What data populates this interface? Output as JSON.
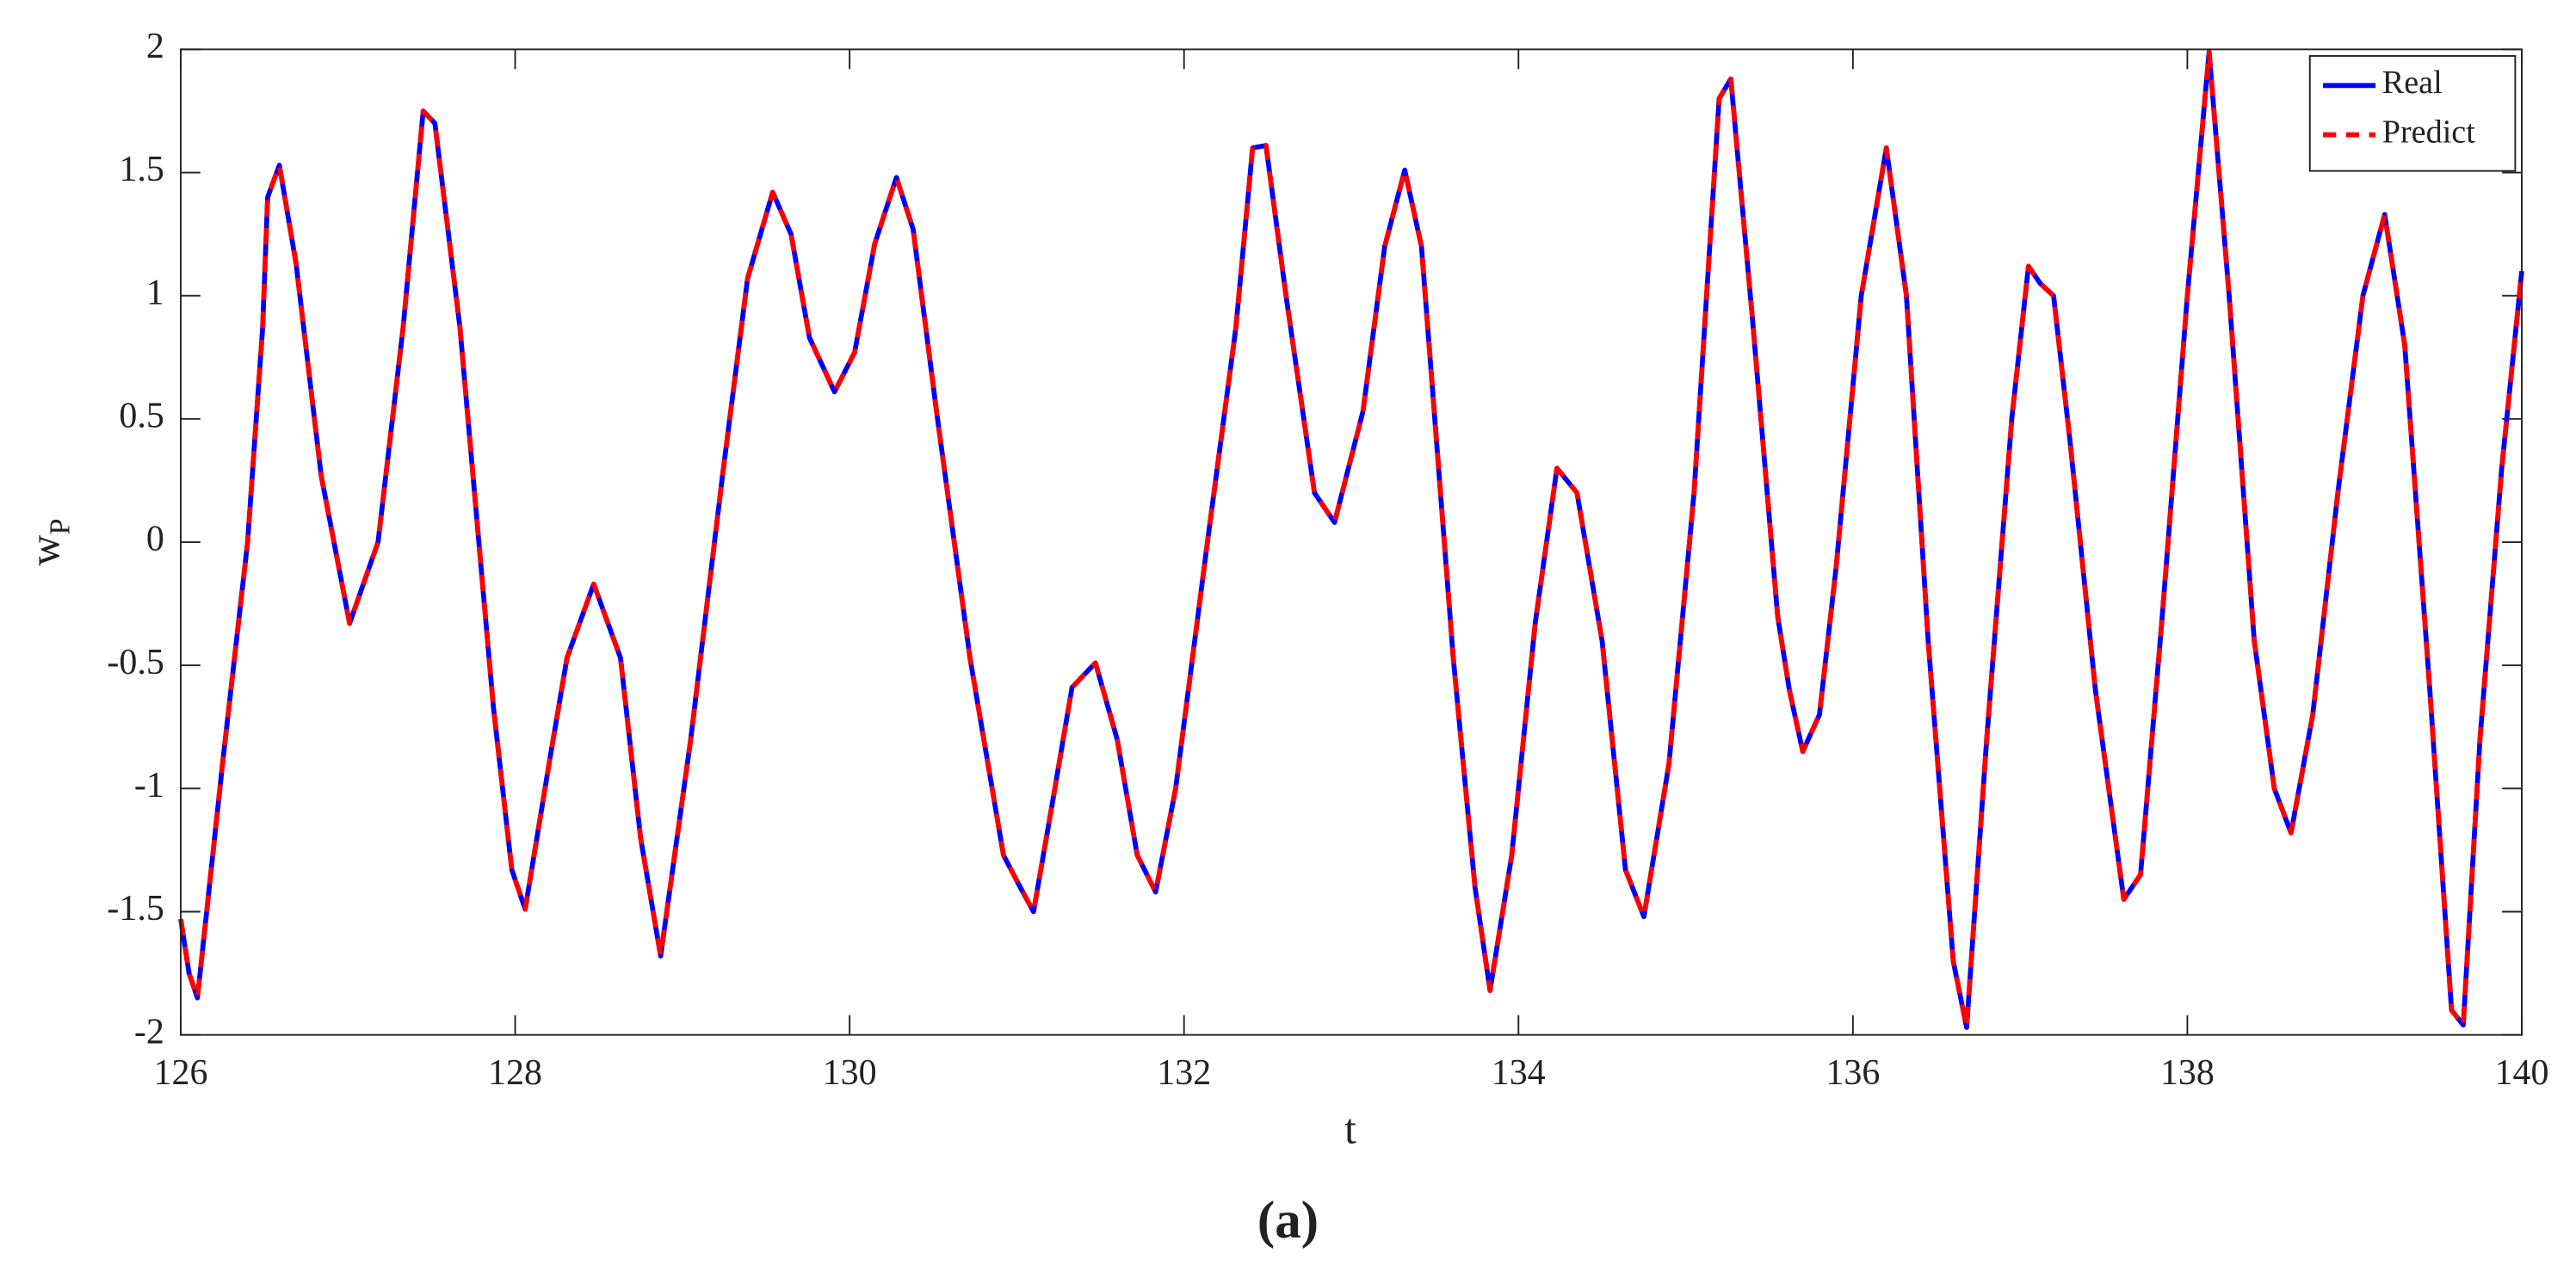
{
  "chart_data": {
    "type": "line",
    "xlabel": "t",
    "ylabel": {
      "main": "w",
      "sub": "P"
    },
    "caption": "(a)",
    "x": [
      126,
      126.05,
      126.1,
      126.25,
      126.4,
      126.49,
      126.52,
      126.59,
      126.69,
      126.84,
      127.01,
      127.18,
      127.33,
      127.45,
      127.52,
      127.67,
      127.87,
      127.98,
      128.06,
      128.21,
      128.31,
      128.47,
      128.63,
      128.75,
      128.87,
      129.05,
      129.24,
      129.39,
      129.54,
      129.65,
      129.76,
      129.91,
      130.03,
      130.15,
      130.28,
      130.38,
      130.52,
      130.72,
      130.92,
      131.02,
      131.1,
      131.21,
      131.33,
      131.47,
      131.6,
      131.72,
      131.83,
      131.95,
      132.14,
      132.31,
      132.41,
      132.49,
      132.61,
      132.78,
      132.9,
      133.07,
      133.2,
      133.32,
      133.42,
      133.61,
      133.74,
      133.83,
      133.96,
      134.1,
      134.23,
      134.35,
      134.5,
      134.64,
      134.75,
      134.9,
      135.05,
      135.2,
      135.27,
      135.4,
      135.55,
      135.62,
      135.7,
      135.8,
      135.9,
      136.05,
      136.2,
      136.32,
      136.45,
      136.6,
      136.68,
      136.8,
      136.95,
      137.05,
      137.12,
      137.2,
      137.3,
      137.45,
      137.62,
      137.72,
      137.85,
      138,
      138.13,
      138.25,
      138.4,
      138.52,
      138.62,
      138.75,
      138.9,
      139.05,
      139.18,
      139.3,
      139.45,
      139.58,
      139.65,
      139.75,
      139.88,
      140
    ],
    "series": [
      {
        "name": "Real",
        "color": "#0000ff",
        "dash": false,
        "values": [
          -1.53,
          -1.75,
          -1.85,
          -0.9,
          0,
          0.87,
          1.4,
          1.53,
          1.13,
          0.27,
          -0.33,
          0,
          0.87,
          1.75,
          1.7,
          0.87,
          -0.67,
          -1.33,
          -1.49,
          -0.87,
          -0.47,
          -0.17,
          -0.47,
          -1.2,
          -1.68,
          -0.8,
          0.27,
          1.07,
          1.42,
          1.25,
          0.83,
          0.61,
          0.77,
          1.21,
          1.48,
          1.27,
          0.53,
          -0.47,
          -1.27,
          -1.4,
          -1.5,
          -1.07,
          -0.59,
          -0.49,
          -0.8,
          -1.27,
          -1.42,
          -1,
          0,
          0.87,
          1.6,
          1.61,
          1,
          0.2,
          0.08,
          0.53,
          1.2,
          1.51,
          1.2,
          -0.47,
          -1.4,
          -1.82,
          -1.27,
          -0.33,
          0.3,
          0.2,
          -0.4,
          -1.33,
          -1.52,
          -0.9,
          0.2,
          1.8,
          1.88,
          0.9,
          -0.3,
          -0.6,
          -0.85,
          -0.7,
          -0.1,
          1,
          1.6,
          1,
          -0.4,
          -1.7,
          -1.97,
          -0.8,
          0.5,
          1.12,
          1.05,
          1,
          0.4,
          -0.6,
          -1.45,
          -1.35,
          -0.3,
          1,
          1.99,
          1,
          -0.4,
          -1,
          -1.18,
          -0.7,
          0.2,
          1,
          1.33,
          0.8,
          -0.6,
          -1.9,
          -1.96,
          -0.8,
          0.3,
          1.1
        ]
      },
      {
        "name": "Predict",
        "color": "#ff0000",
        "dash": true,
        "values": [
          -1.53,
          -1.75,
          -1.85,
          -0.9,
          0,
          0.87,
          1.4,
          1.53,
          1.13,
          0.27,
          -0.33,
          0,
          0.87,
          1.75,
          1.7,
          0.87,
          -0.67,
          -1.33,
          -1.49,
          -0.87,
          -0.47,
          -0.17,
          -0.47,
          -1.2,
          -1.68,
          -0.8,
          0.27,
          1.07,
          1.42,
          1.25,
          0.83,
          0.61,
          0.77,
          1.21,
          1.48,
          1.27,
          0.53,
          -0.47,
          -1.27,
          -1.4,
          -1.5,
          -1.07,
          -0.59,
          -0.49,
          -0.8,
          -1.27,
          -1.42,
          -1,
          0,
          0.87,
          1.6,
          1.61,
          1,
          0.2,
          0.08,
          0.53,
          1.2,
          1.51,
          1.2,
          -0.47,
          -1.4,
          -1.82,
          -1.27,
          -0.33,
          0.3,
          0.2,
          -0.4,
          -1.33,
          -1.52,
          -0.9,
          0.2,
          1.8,
          1.88,
          0.9,
          -0.3,
          -0.6,
          -0.85,
          -0.7,
          -0.1,
          1,
          1.6,
          1,
          -0.4,
          -1.7,
          -1.97,
          -0.8,
          0.5,
          1.12,
          1.05,
          1,
          0.4,
          -0.6,
          -1.45,
          -1.35,
          -0.3,
          1,
          1.99,
          1,
          -0.4,
          -1,
          -1.18,
          -0.7,
          0.2,
          1,
          1.33,
          0.8,
          -0.6,
          -1.9,
          -1.96,
          -0.8,
          0.3,
          1.1
        ]
      }
    ],
    "xlim": [
      126,
      140
    ],
    "xticks": [
      126,
      128,
      130,
      132,
      134,
      136,
      138,
      140
    ],
    "ylim": [
      -2,
      2
    ],
    "yticks": [
      -2,
      -1.5,
      -1,
      -0.5,
      0,
      0.5,
      1,
      1.5,
      2
    ],
    "grid": false,
    "legend": "upper right"
  }
}
